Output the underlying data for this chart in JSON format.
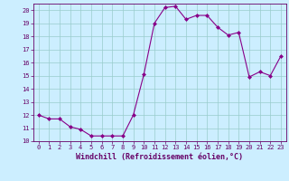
{
  "x": [
    0,
    1,
    2,
    3,
    4,
    5,
    6,
    7,
    8,
    9,
    10,
    11,
    12,
    13,
    14,
    15,
    16,
    17,
    18,
    19,
    20,
    21,
    22,
    23
  ],
  "y": [
    12.0,
    11.7,
    11.7,
    11.1,
    10.9,
    10.4,
    10.4,
    10.4,
    10.4,
    12.0,
    15.1,
    19.0,
    20.2,
    20.3,
    19.3,
    19.6,
    19.6,
    18.7,
    18.1,
    18.3,
    14.9,
    15.3,
    15.0,
    16.5
  ],
  "ylim": [
    10,
    20.5
  ],
  "xlim": [
    -0.5,
    23.5
  ],
  "yticks": [
    10,
    11,
    12,
    13,
    14,
    15,
    16,
    17,
    18,
    19,
    20
  ],
  "xticks": [
    0,
    1,
    2,
    3,
    4,
    5,
    6,
    7,
    8,
    9,
    10,
    11,
    12,
    13,
    14,
    15,
    16,
    17,
    18,
    19,
    20,
    21,
    22,
    23
  ],
  "xtick_labels": [
    "0",
    "1",
    "2",
    "3",
    "4",
    "5",
    "6",
    "7",
    "8",
    "9",
    "10",
    "11",
    "12",
    "13",
    "14",
    "15",
    "16",
    "17",
    "18",
    "19",
    "20",
    "21",
    "22",
    "23"
  ],
  "ytick_labels": [
    "10",
    "11",
    "12",
    "13",
    "14",
    "15",
    "16",
    "17",
    "18",
    "19",
    "20"
  ],
  "xlabel": "Windchill (Refroidissement éolien,°C)",
  "line_color": "#880088",
  "marker": "D",
  "marker_size": 2.0,
  "line_width": 0.8,
  "bg_color": "#cceeff",
  "grid_color": "#99cccc",
  "tick_color": "#660066",
  "label_color": "#660066",
  "tick_fontsize": 5.0,
  "xlabel_fontsize": 6.0
}
